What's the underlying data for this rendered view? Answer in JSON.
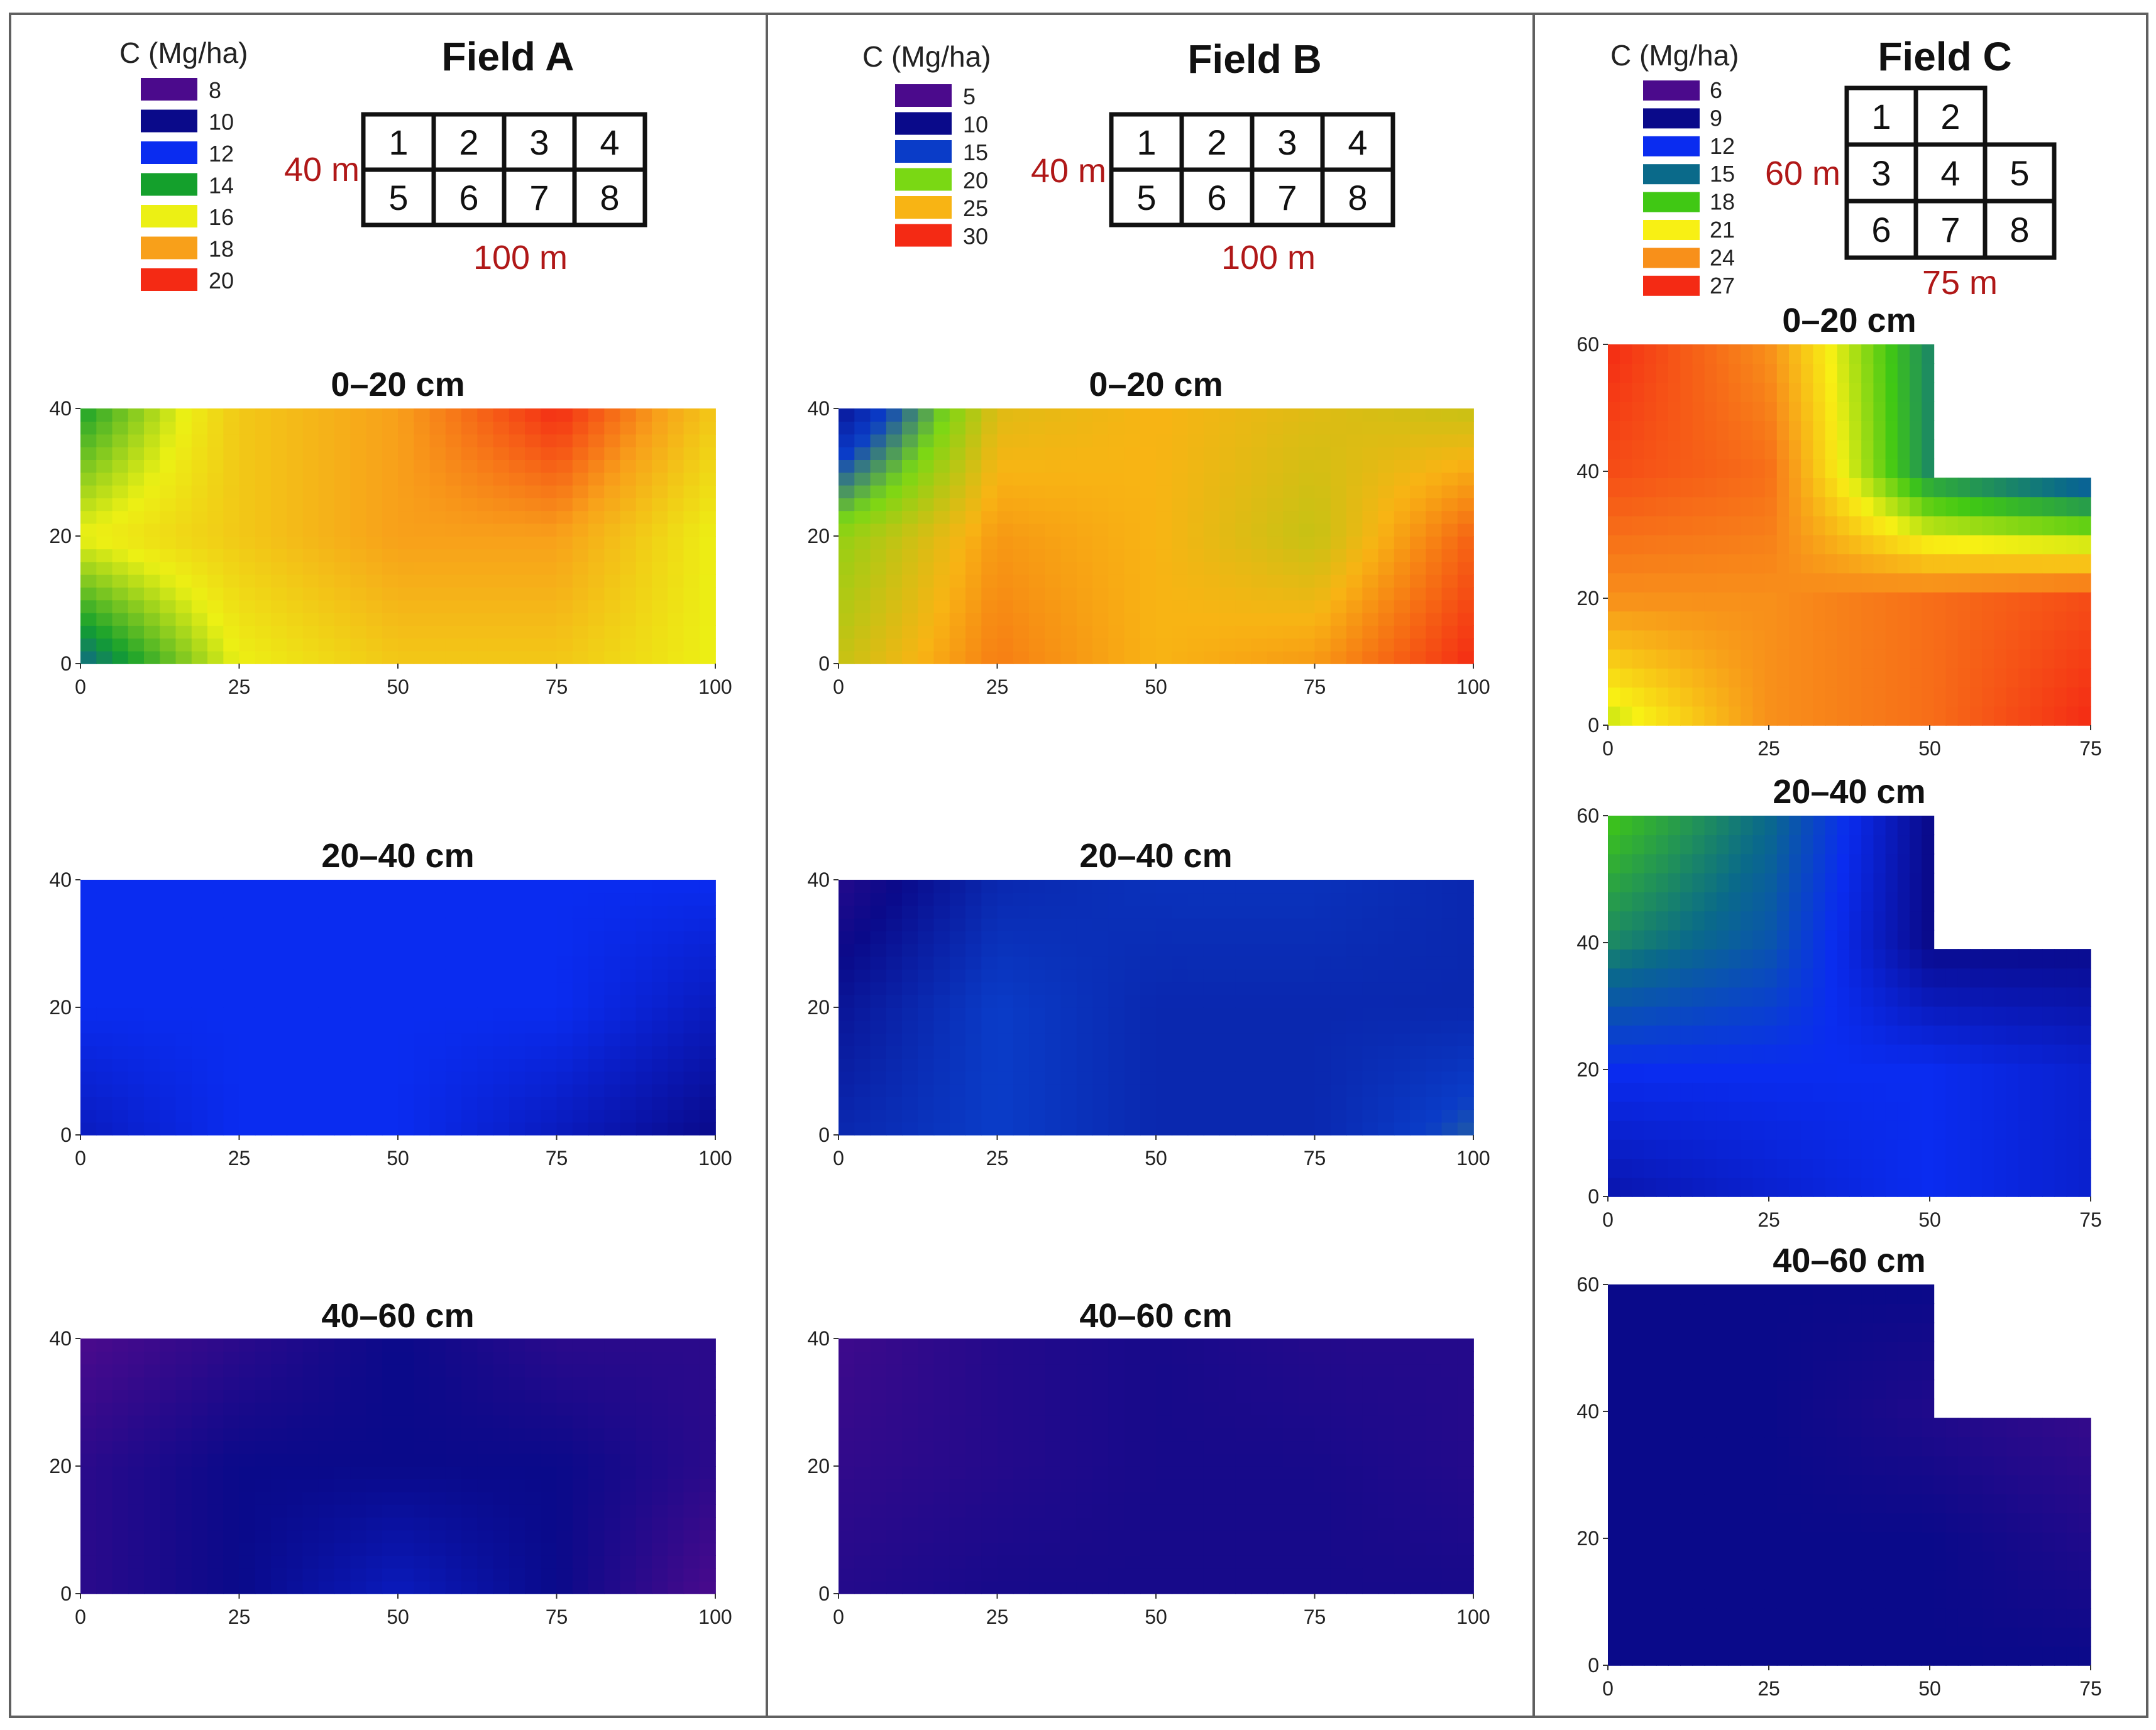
{
  "legend_unit": "C (Mg/ha)",
  "depth_labels": [
    "0–20 cm",
    "20–40 cm",
    "40–60 cm"
  ],
  "fields": [
    {
      "name": "Field A",
      "legend": [
        {
          "value": "8",
          "color": "#4b0a8c"
        },
        {
          "value": "10",
          "color": "#0a0a8a"
        },
        {
          "value": "12",
          "color": "#0a2cf0"
        },
        {
          "value": "14",
          "color": "#14a02c"
        },
        {
          "value": "16",
          "color": "#ecf014"
        },
        {
          "value": "18",
          "color": "#f8a01a"
        },
        {
          "value": "20",
          "color": "#f42a14"
        }
      ],
      "plot_grid": [
        [
          "1",
          "2",
          "3",
          "4"
        ],
        [
          "5",
          "6",
          "7",
          "8"
        ]
      ],
      "dimensions": {
        "width": "100 m",
        "height": "40 m"
      }
    },
    {
      "name": "Field B",
      "legend": [
        {
          "value": "5",
          "color": "#4b0a8c"
        },
        {
          "value": "10",
          "color": "#0a0a8a"
        },
        {
          "value": "15",
          "color": "#0a3cc8"
        },
        {
          "value": "20",
          "color": "#7ad814"
        },
        {
          "value": "25",
          "color": "#f8b414"
        },
        {
          "value": "30",
          "color": "#f42a14"
        }
      ],
      "plot_grid": [
        [
          "1",
          "2",
          "3",
          "4"
        ],
        [
          "5",
          "6",
          "7",
          "8"
        ]
      ],
      "dimensions": {
        "width": "100 m",
        "height": "40 m"
      }
    },
    {
      "name": "Field C",
      "legend": [
        {
          "value": "6",
          "color": "#4b0a8c"
        },
        {
          "value": "9",
          "color": "#0a0a8a"
        },
        {
          "value": "12",
          "color": "#0a2cf0"
        },
        {
          "value": "15",
          "color": "#0a6a8a"
        },
        {
          "value": "18",
          "color": "#40c814"
        },
        {
          "value": "21",
          "color": "#f8f014"
        },
        {
          "value": "24",
          "color": "#f8901a"
        },
        {
          "value": "27",
          "color": "#f42a14"
        }
      ],
      "plot_grid": [
        [
          "1",
          "2",
          ""
        ],
        [
          "3",
          "4",
          "5"
        ],
        [
          "6",
          "7",
          "8"
        ]
      ],
      "dimensions": {
        "width": "75 m",
        "height": "60 m"
      }
    }
  ],
  "chart_data": [
    {
      "type": "heatmap",
      "field": "Field A",
      "title": "0–20 cm",
      "xlim": [
        0,
        100
      ],
      "ylim": [
        0,
        40
      ],
      "x": [
        0,
        25,
        50,
        75,
        100
      ],
      "y": [
        0,
        20,
        40
      ],
      "values": [
        [
          13,
          16,
          17,
          17,
          16
        ],
        [
          16,
          17,
          18,
          18,
          16
        ],
        [
          14,
          17,
          18,
          20,
          17
        ]
      ]
    },
    {
      "type": "heatmap",
      "field": "Field A",
      "title": "20–40 cm",
      "xlim": [
        0,
        100
      ],
      "ylim": [
        0,
        40
      ],
      "x": [
        0,
        25,
        50,
        75,
        100
      ],
      "y": [
        0,
        20,
        40
      ],
      "values": [
        [
          11,
          12,
          12,
          11,
          10
        ],
        [
          12,
          12,
          12,
          12,
          11
        ],
        [
          12,
          12,
          12,
          12,
          12
        ]
      ]
    },
    {
      "type": "heatmap",
      "field": "Field A",
      "title": "40–60 cm",
      "xlim": [
        0,
        100
      ],
      "ylim": [
        0,
        40
      ],
      "x": [
        0,
        25,
        50,
        75,
        100
      ],
      "y": [
        0,
        20,
        40
      ],
      "values": [
        [
          9,
          10,
          11,
          10,
          8
        ],
        [
          9,
          10,
          10,
          10,
          9
        ],
        [
          8,
          9,
          10,
          9,
          9
        ]
      ]
    },
    {
      "type": "heatmap",
      "field": "Field B",
      "title": "0–20 cm",
      "xlim": [
        0,
        100
      ],
      "ylim": [
        0,
        40
      ],
      "x": [
        0,
        25,
        50,
        75,
        100
      ],
      "y": [
        0,
        20,
        40
      ],
      "values": [
        [
          23,
          27,
          25,
          26,
          30
        ],
        [
          21,
          26,
          25,
          23,
          28
        ],
        [
          11,
          24,
          25,
          24,
          23
        ]
      ]
    },
    {
      "type": "heatmap",
      "field": "Field B",
      "title": "20–40 cm",
      "xlim": [
        0,
        100
      ],
      "ylim": [
        0,
        40
      ],
      "x": [
        0,
        25,
        50,
        75,
        100
      ],
      "y": [
        0,
        20,
        40
      ],
      "values": [
        [
          13,
          15,
          13,
          13,
          16
        ],
        [
          11,
          15,
          13,
          13,
          13
        ],
        [
          8,
          13,
          14,
          14,
          13
        ]
      ]
    },
    {
      "type": "heatmap",
      "field": "Field B",
      "title": "40–60 cm",
      "xlim": [
        0,
        100
      ],
      "ylim": [
        0,
        40
      ],
      "x": [
        0,
        25,
        50,
        75,
        100
      ],
      "y": [
        0,
        20,
        40
      ],
      "values": [
        [
          8,
          9,
          9,
          9,
          9
        ],
        [
          7,
          8,
          9,
          9,
          8
        ],
        [
          6,
          8,
          9,
          8,
          8
        ]
      ]
    },
    {
      "type": "heatmap",
      "field": "Field C",
      "title": "0–20 cm",
      "xlim": [
        0,
        75
      ],
      "ylim": [
        0,
        60
      ],
      "x": [
        0,
        25,
        50,
        75
      ],
      "y": [
        0,
        20,
        40,
        60
      ],
      "values": [
        [
          20,
          24,
          25,
          27
        ],
        [
          24,
          24,
          25,
          26
        ],
        [
          26,
          25,
          16,
          13
        ],
        [
          27,
          24,
          16,
          null
        ]
      ]
    },
    {
      "type": "heatmap",
      "field": "Field C",
      "title": "20–40 cm",
      "xlim": [
        0,
        75
      ],
      "ylim": [
        0,
        60
      ],
      "x": [
        0,
        25,
        50,
        75
      ],
      "y": [
        0,
        20,
        40,
        60
      ],
      "values": [
        [
          10,
          11,
          12,
          11
        ],
        [
          12,
          12,
          12,
          11
        ],
        [
          16,
          14,
          9,
          9
        ],
        [
          18,
          15,
          9,
          null
        ]
      ]
    },
    {
      "type": "heatmap",
      "field": "Field C",
      "title": "40–60 cm",
      "xlim": [
        0,
        75
      ],
      "ylim": [
        0,
        60
      ],
      "x": [
        0,
        25,
        50,
        75
      ],
      "y": [
        0,
        20,
        40,
        60
      ],
      "values": [
        [
          9,
          9,
          9,
          9
        ],
        [
          9,
          9,
          9,
          8
        ],
        [
          9,
          9,
          8,
          7
        ],
        [
          9,
          9,
          9,
          null
        ]
      ]
    }
  ]
}
